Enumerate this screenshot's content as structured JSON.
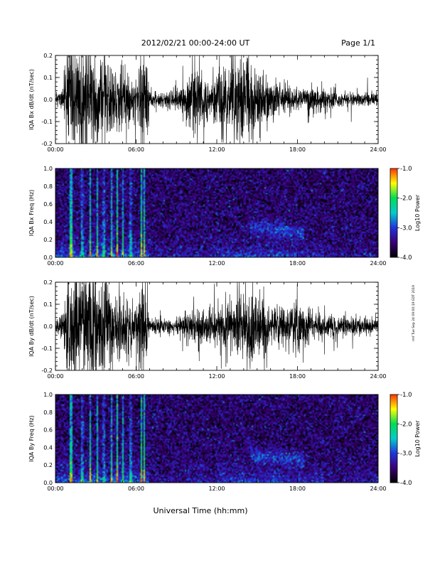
{
  "header": {
    "date_range": "2012/02/21   00:00-24:00 UT",
    "page": "Page 1/1"
  },
  "footer": {
    "xlabel": "Universal Time (hh:mm)"
  },
  "side_note": "rmf Tue Sep 24 09:00:19 EDT 2019",
  "colors": {
    "waveform": "#000000",
    "frame": "#000000",
    "colormap": [
      "#000000",
      "#3a0078",
      "#2233dd",
      "#00cccc",
      "#00dd55",
      "#ffff00",
      "#ff3300"
    ]
  },
  "chart_data": [
    {
      "type": "line",
      "name": "Bx waveform",
      "ylabel": "IQA Bx dB/dt (nT/sec)",
      "xlim": [
        0,
        24
      ],
      "ylim": [
        -0.2,
        0.2
      ],
      "x_ticks": [
        "00:00",
        "06:00",
        "12:00",
        "18:00",
        "24:00"
      ],
      "y_ticks": [
        "-0.2",
        "-0.1",
        "0.0",
        "0.1",
        "0.2"
      ],
      "y_tick_values": [
        -0.2,
        -0.1,
        0.0,
        0.1,
        0.2
      ],
      "amplitude_envelope": {
        "hours": [
          0,
          0.5,
          1.0,
          1.2,
          1.5,
          2.0,
          2.5,
          3.0,
          3.5,
          4.0,
          4.5,
          5.0,
          5.5,
          6.0,
          6.3,
          6.7,
          7.0,
          8.0,
          9.0,
          9.5,
          10.0,
          10.5,
          11.0,
          11.5,
          12.0,
          12.5,
          13.0,
          13.5,
          14.0,
          14.5,
          15.0,
          15.5,
          16.0,
          17.0,
          18.0,
          19.0,
          20.0,
          21.0,
          22.0,
          23.0,
          24.0
        ],
        "amplitude": [
          0.03,
          0.05,
          0.22,
          0.25,
          0.2,
          0.22,
          0.25,
          0.18,
          0.2,
          0.16,
          0.14,
          0.15,
          0.1,
          0.07,
          0.2,
          0.2,
          0.04,
          0.03,
          0.04,
          0.06,
          0.12,
          0.14,
          0.12,
          0.08,
          0.1,
          0.14,
          0.16,
          0.2,
          0.22,
          0.2,
          0.16,
          0.12,
          0.09,
          0.06,
          0.05,
          0.06,
          0.05,
          0.04,
          0.03,
          0.03,
          0.03
        ]
      }
    },
    {
      "type": "heatmap",
      "name": "Bx spectrogram",
      "ylabel": "IQA Bx Freq (Hz)",
      "xlim": [
        0,
        24
      ],
      "ylim": [
        0,
        1.0
      ],
      "x_ticks": [
        "00:00",
        "06:00",
        "12:00",
        "18:00",
        "24:00"
      ],
      "y_ticks": [
        "0.0",
        "0.2",
        "0.4",
        "0.6",
        "0.8",
        "1.0"
      ],
      "y_tick_values": [
        0,
        0.2,
        0.4,
        0.6,
        0.8,
        1.0
      ],
      "colorbar": {
        "label": "Log10 Power",
        "range": [
          -4.0,
          -1.0
        ],
        "ticks": [
          "-1.0",
          "-2.0",
          "-3.0",
          "-4.0"
        ],
        "tick_values": [
          -1.0,
          -2.0,
          -3.0,
          -4.0
        ]
      },
      "burst_hours": [
        1.1,
        1.2,
        2.0,
        2.6,
        3.1,
        3.6,
        4.2,
        4.6,
        5.0,
        5.6,
        6.4,
        6.6
      ],
      "wave_patch": {
        "hours": [
          14.5,
          18.5
        ],
        "freq": [
          0.15,
          0.55
        ]
      }
    },
    {
      "type": "line",
      "name": "By waveform",
      "ylabel": "IQA By dB/dt (nT/sec)",
      "xlim": [
        0,
        24
      ],
      "ylim": [
        -0.2,
        0.2
      ],
      "x_ticks": [
        "00:00",
        "06:00",
        "12:00",
        "18:00",
        "24:00"
      ],
      "y_ticks": [
        "-0.2",
        "-0.1",
        "0.0",
        "0.1",
        "0.2"
      ],
      "y_tick_values": [
        -0.2,
        -0.1,
        0.0,
        0.1,
        0.2
      ],
      "amplitude_envelope": {
        "hours": [
          0,
          0.5,
          1.0,
          1.2,
          1.5,
          2.0,
          2.5,
          3.0,
          3.5,
          4.0,
          4.5,
          5.0,
          5.5,
          6.0,
          6.3,
          6.7,
          7.0,
          8.0,
          9.0,
          9.5,
          10.0,
          10.5,
          11.0,
          11.5,
          12.0,
          12.5,
          13.0,
          13.5,
          14.0,
          14.5,
          15.0,
          15.5,
          16.0,
          17.0,
          18.0,
          19.0,
          20.0,
          21.0,
          22.0,
          23.0,
          24.0
        ],
        "amplitude": [
          0.03,
          0.06,
          0.25,
          0.25,
          0.22,
          0.24,
          0.25,
          0.2,
          0.2,
          0.17,
          0.15,
          0.15,
          0.12,
          0.08,
          0.22,
          0.18,
          0.04,
          0.03,
          0.04,
          0.05,
          0.07,
          0.09,
          0.08,
          0.07,
          0.08,
          0.1,
          0.12,
          0.12,
          0.14,
          0.15,
          0.16,
          0.13,
          0.1,
          0.09,
          0.12,
          0.07,
          0.05,
          0.05,
          0.04,
          0.04,
          0.03
        ]
      }
    },
    {
      "type": "heatmap",
      "name": "By spectrogram",
      "ylabel": "IQA By Freq (Hz)",
      "xlim": [
        0,
        24
      ],
      "ylim": [
        0,
        1.0
      ],
      "x_ticks": [
        "00:00",
        "06:00",
        "12:00",
        "18:00",
        "24:00"
      ],
      "y_ticks": [
        "0.0",
        "0.2",
        "0.4",
        "0.6",
        "0.8",
        "1.0"
      ],
      "y_tick_values": [
        0,
        0.2,
        0.4,
        0.6,
        0.8,
        1.0
      ],
      "colorbar": {
        "label": "Log10 Power",
        "range": [
          -4.0,
          -1.0
        ],
        "ticks": [
          "-1.0",
          "-2.0",
          "-3.0",
          "-4.0"
        ],
        "tick_values": [
          -1.0,
          -2.0,
          -3.0,
          -4.0
        ]
      },
      "burst_hours": [
        1.1,
        1.2,
        2.0,
        2.6,
        3.1,
        3.6,
        4.2,
        4.6,
        5.0,
        5.6,
        6.4,
        6.6
      ],
      "wave_patch": {
        "hours": [
          14.5,
          18.5
        ],
        "freq": [
          0.15,
          0.5
        ]
      }
    }
  ]
}
